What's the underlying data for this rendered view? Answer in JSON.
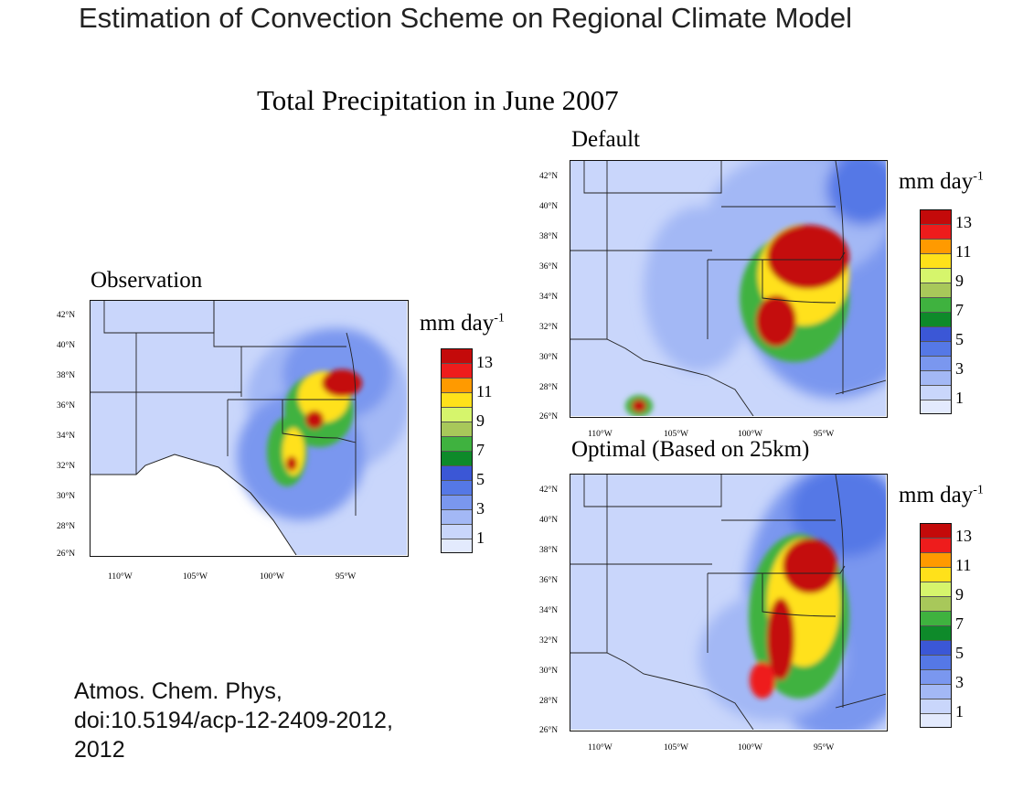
{
  "slide_title": "Estimation of Convection Scheme on Regional Climate Model",
  "figure_title": "Total Precipitation in June 2007",
  "panels": {
    "observation": {
      "title": "Observation"
    },
    "default": {
      "title": "Default"
    },
    "optimal": {
      "title": "Optimal (Based on 25km)"
    }
  },
  "axes": {
    "lat_labels": [
      "42°N",
      "40°N",
      "38°N",
      "36°N",
      "34°N",
      "32°N",
      "30°N",
      "28°N",
      "26°N"
    ],
    "lon_labels": [
      "110°W",
      "105°W",
      "100°W",
      "95°W"
    ]
  },
  "colorbar": {
    "units_base": "mm day",
    "units_exp": "-1",
    "labels": [
      "13",
      "11",
      "9",
      "7",
      "5",
      "3",
      "1"
    ],
    "colors_top_to_bottom": [
      "#c40a0a",
      "#ee1c1c",
      "#ff9a00",
      "#ffe11a",
      "#d6f56c",
      "#a8c85a",
      "#3fb23f",
      "#0e8a2a",
      "#3b57d6",
      "#5578e6",
      "#7a97ef",
      "#a3b8f5",
      "#c9d6fb",
      "#e3eafd"
    ]
  },
  "citation": {
    "line1": "Atmos. Chem. Phys,",
    "line2": "doi:10.5194/acp-12-2409-2012,",
    "line3": "2012"
  }
}
